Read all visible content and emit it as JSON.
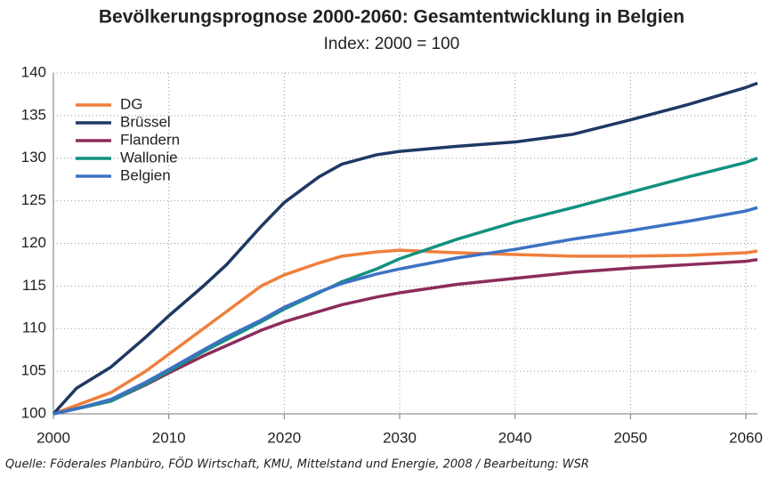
{
  "chart_data": {
    "type": "line",
    "title": "Bevölkerungsprognose 2000-2060: Gesamtentwicklung in Belgien",
    "subtitle": "Index: 2000 = 100",
    "source": "Quelle: Föderales Planbüro, FÖD Wirtschaft, KMU, Mittelstand und Energie, 2008 / Bearbeitung: WSR",
    "x": [
      2000,
      2002,
      2005,
      2008,
      2010,
      2013,
      2015,
      2018,
      2020,
      2023,
      2025,
      2028,
      2030,
      2035,
      2040,
      2045,
      2050,
      2055,
      2060,
      2061
    ],
    "series": [
      {
        "name": "DG",
        "color": "#f07f3c",
        "values": [
          100,
          101,
          102.5,
          105,
          107,
          110,
          112,
          115,
          116.3,
          117.7,
          118.5,
          119,
          119.2,
          118.9,
          118.7,
          118.5,
          118.5,
          118.6,
          118.9,
          119.1
        ]
      },
      {
        "name": "Brüssel",
        "color": "#1f3864",
        "values": [
          100,
          103,
          105.5,
          109,
          111.5,
          115,
          117.5,
          122,
          124.8,
          127.8,
          129.3,
          130.4,
          130.8,
          131.4,
          131.9,
          132.8,
          134.5,
          136.3,
          138.3,
          138.8
        ]
      },
      {
        "name": "Flandern",
        "color": "#8b2d5c",
        "values": [
          100,
          100.6,
          101.5,
          103.4,
          104.8,
          106.8,
          108,
          109.8,
          110.8,
          112,
          112.8,
          113.7,
          114.2,
          115.2,
          115.9,
          116.6,
          117.1,
          117.5,
          117.9,
          118.1
        ]
      },
      {
        "name": "Wallonie",
        "color": "#12917f",
        "values": [
          100,
          100.6,
          101.5,
          103.5,
          105,
          107.3,
          108.7,
          110.8,
          112.3,
          114.2,
          115.5,
          117,
          118.2,
          120.5,
          122.5,
          124.2,
          126,
          127.8,
          129.5,
          130
        ]
      },
      {
        "name": "Belgien",
        "color": "#3c72c4",
        "values": [
          100,
          100.6,
          101.7,
          103.7,
          105.2,
          107.5,
          109,
          111,
          112.5,
          114.3,
          115.3,
          116.4,
          117,
          118.3,
          119.3,
          120.5,
          121.5,
          122.6,
          123.8,
          124.2
        ]
      }
    ],
    "xlim": [
      2000,
      2061
    ],
    "ylim": [
      100,
      140
    ],
    "xticks": [
      2000,
      2010,
      2020,
      2030,
      2040,
      2050,
      2060
    ],
    "yticks": [
      100,
      105,
      110,
      115,
      120,
      125,
      130,
      135,
      140
    ],
    "grid": true,
    "legend": "upper left"
  }
}
